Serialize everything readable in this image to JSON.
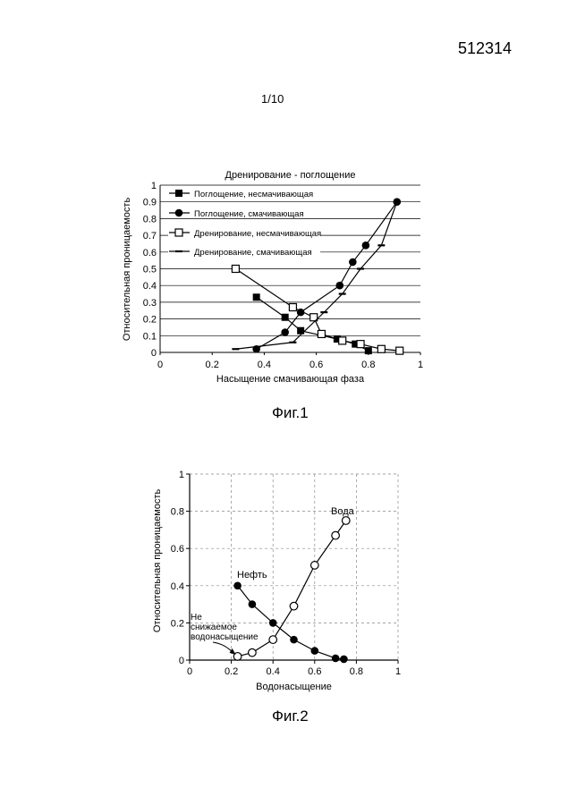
{
  "header": {
    "doc_number": "512314",
    "page_num": "1/10"
  },
  "figures": [
    {
      "caption": "Фиг.1"
    },
    {
      "caption": "Фиг.2"
    }
  ],
  "chart_data": [
    {
      "type": "line",
      "title": "Дренирование - поглощение",
      "xlabel": "Насыщение смачивающая фаза",
      "ylabel": "Относительная проницаемость",
      "xlim": [
        0,
        1
      ],
      "ylim": [
        0,
        1
      ],
      "x_ticks": [
        "0",
        "0.2",
        "0.4",
        "0.6",
        "0.8",
        "1"
      ],
      "y_ticks": [
        "0",
        "0.1",
        "0.2",
        "0.3",
        "0.4",
        "0.5",
        "0.6",
        "0.7",
        "0.8",
        "0.9",
        "1"
      ],
      "grid": "horizontal",
      "legend_position": "top-left",
      "series": [
        {
          "name": "Поглощение, несмачивающая",
          "marker": "filled-square",
          "x": [
            0.37,
            0.48,
            0.54,
            0.68,
            0.75,
            0.8
          ],
          "y": [
            0.33,
            0.21,
            0.13,
            0.08,
            0.05,
            0.01
          ]
        },
        {
          "name": "Поглощение, смачивающая",
          "marker": "filled-circle",
          "x": [
            0.37,
            0.48,
            0.54,
            0.69,
            0.74,
            0.79,
            0.91
          ],
          "y": [
            0.02,
            0.12,
            0.24,
            0.4,
            0.54,
            0.64,
            0.9
          ]
        },
        {
          "name": "Дренирование, несмачивающая",
          "marker": "open-square",
          "x": [
            0.29,
            0.51,
            0.59,
            0.62,
            0.7,
            0.77,
            0.85,
            0.92
          ],
          "y": [
            0.5,
            0.27,
            0.21,
            0.11,
            0.07,
            0.05,
            0.02,
            0.01
          ]
        },
        {
          "name": "Дренирование, смачивающая",
          "marker": "dash",
          "x": [
            0.29,
            0.51,
            0.63,
            0.7,
            0.77,
            0.85,
            0.91
          ],
          "y": [
            0.02,
            0.06,
            0.24,
            0.35,
            0.5,
            0.64,
            0.9
          ]
        }
      ]
    },
    {
      "type": "line",
      "xlabel": "Водонасыщение",
      "ylabel": "Относительная проницаемость",
      "xlim": [
        0,
        1
      ],
      "ylim": [
        0,
        1
      ],
      "x_ticks": [
        "0",
        "0.2",
        "0.4",
        "0.6",
        "0.8",
        "1"
      ],
      "y_ticks": [
        "0",
        "0.2",
        "0.4",
        "0.6",
        "0.8",
        "1"
      ],
      "grid": "dashed",
      "series": [
        {
          "name": "Нефть",
          "marker": "filled-circle",
          "x": [
            0.23,
            0.3,
            0.4,
            0.5,
            0.6,
            0.7,
            0.74
          ],
          "y": [
            0.4,
            0.3,
            0.2,
            0.11,
            0.05,
            0.01,
            0.005
          ]
        },
        {
          "name": "Вода",
          "marker": "open-circle",
          "x": [
            0.23,
            0.3,
            0.4,
            0.5,
            0.6,
            0.7,
            0.75
          ],
          "y": [
            0.02,
            0.04,
            0.11,
            0.29,
            0.51,
            0.67,
            0.75
          ]
        }
      ],
      "annotations": [
        {
          "lines": [
            "Не",
            "снижаемое",
            "водонасыщение"
          ],
          "points_to_x": 0.23,
          "points_to_y": 0.02
        }
      ]
    }
  ]
}
